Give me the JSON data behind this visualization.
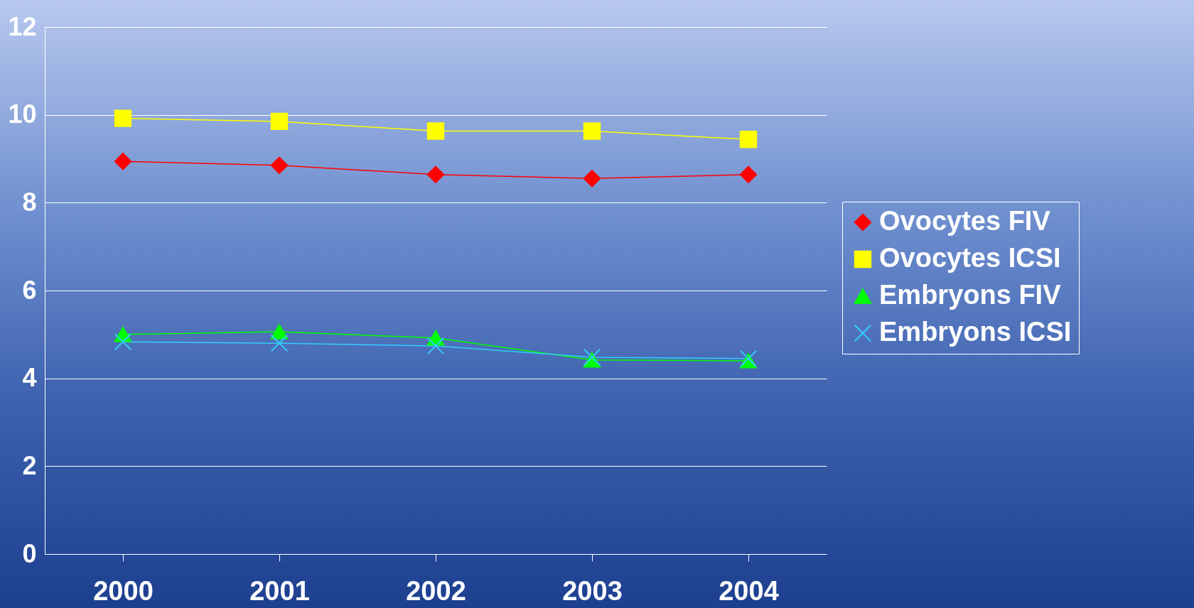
{
  "chart_data": {
    "type": "line",
    "categories": [
      "2000",
      "2001",
      "2002",
      "2003",
      "2004"
    ],
    "series": [
      {
        "name": "Ovocytes FIV",
        "color": "#ff0000",
        "marker": "diamond",
        "values": [
          8.94,
          8.85,
          8.64,
          8.55,
          8.64
        ]
      },
      {
        "name": "Ovocytes ICSI",
        "color": "#ffff00",
        "marker": "square",
        "values": [
          9.92,
          9.85,
          9.63,
          9.63,
          9.44
        ]
      },
      {
        "name": "Embryons FIV",
        "color": "#00ff00",
        "marker": "triangle",
        "values": [
          5.0,
          5.06,
          4.92,
          4.42,
          4.4
        ]
      },
      {
        "name": "Embryons ICSI",
        "color": "#33ccff",
        "marker": "cross",
        "values": [
          4.83,
          4.8,
          4.74,
          4.48,
          4.45
        ]
      }
    ],
    "ylim": [
      0,
      12
    ],
    "yticks": [
      0,
      2,
      4,
      6,
      8,
      10,
      12
    ],
    "grid": "y",
    "legend": "right"
  }
}
